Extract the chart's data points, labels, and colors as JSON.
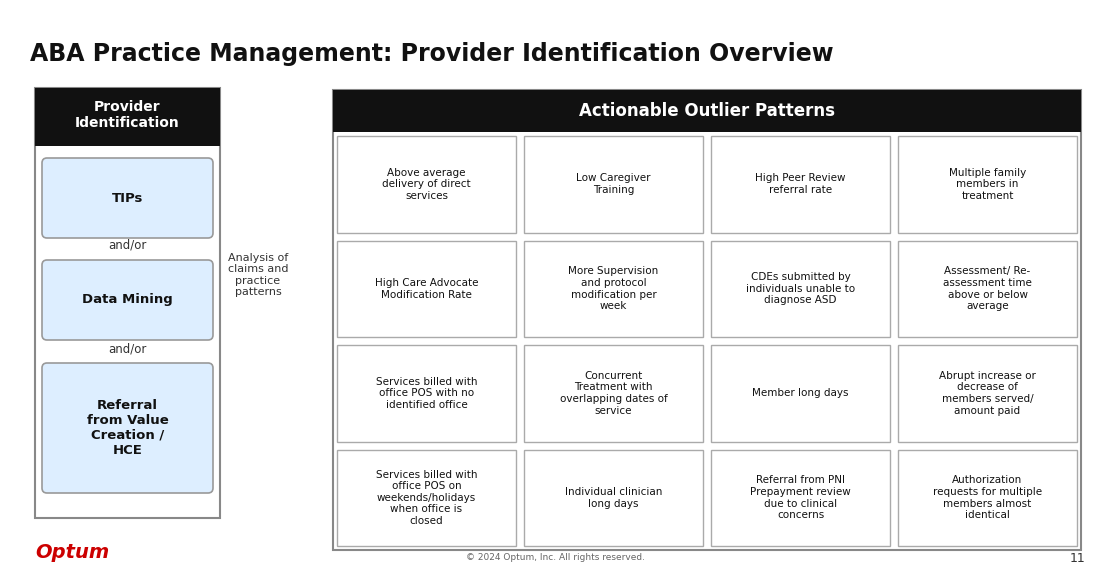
{
  "title": "ABA Practice Management: Provider Identification Overview",
  "bg_color": "#ffffff",
  "title_fontsize": 17,
  "optum_color": "#cc0000",
  "footer_text": "© 2024 Optum, Inc. All rights reserved.",
  "page_num": "11",
  "left_box": {
    "header": "Provider\nIdentification",
    "header_bg": "#111111",
    "header_fg": "#ffffff",
    "items": [
      "TIPs",
      "Data Mining",
      "Referral\nfrom Value\nCreation /\nHCE"
    ],
    "separators": [
      "and/or",
      "and/or"
    ],
    "item_bg": "#ddeeff",
    "item_border": "#999999"
  },
  "analysis_text": "Analysis of\nclaims and\npractice\npatterns",
  "right_table": {
    "header": "Actionable Outlier Patterns",
    "header_bg": "#111111",
    "header_fg": "#ffffff",
    "cell_bg": "#ffffff",
    "cell_border": "#aaaaaa",
    "rows": [
      [
        "Above average\ndelivery of direct\nservices",
        "Low Caregiver\nTraining",
        "High Peer Review\nreferral rate",
        "Multiple family\nmembers in\ntreatment"
      ],
      [
        "High Care Advocate\nModification Rate",
        "More Supervision\nand protocol\nmodification per\nweek",
        "CDEs submitted by\nindividuals unable to\ndiagnose ASD",
        "Assessment/ Re-\nassessment time\nabove or below\naverage"
      ],
      [
        "Services billed with\noffice POS with no\nidentified office",
        "Concurrent\nTreatment with\noverlapping dates of\nservice",
        "Member long days",
        "Abrupt increase or\ndecrease of\nmembers served/\namount paid"
      ],
      [
        "Services billed with\noffice POS on\nweekends/holidays\nwhen office is\nclosed",
        "Individual clinician\nlong days",
        "Referral from PNI\nPrepayment review\ndue to clinical\nconcerns",
        "Authorization\nrequests for multiple\nmembers almost\nidentical"
      ]
    ]
  }
}
